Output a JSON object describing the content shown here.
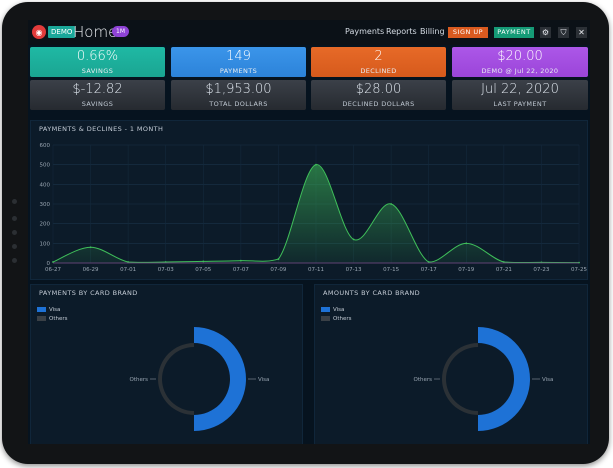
{
  "topbar": {
    "logo_glyph": "◉",
    "demo_badge": "DEMO",
    "title": "Home",
    "title_badge": "1M",
    "nav": [
      "Payments",
      "Reports",
      "Billing"
    ],
    "signup_label": "SIGN UP",
    "payment_label": "PAYMENT",
    "icons": [
      "gear-icon",
      "shield-icon",
      "close-icon"
    ],
    "icon_glyphs": [
      "⚙",
      "⛉",
      "✕"
    ]
  },
  "cards_top": [
    {
      "value": "0.66%",
      "label": "SAVINGS",
      "color": "#1aa592"
    },
    {
      "value": "149",
      "label": "PAYMENTS",
      "color": "#2c83d9"
    },
    {
      "value": "2",
      "label": "DECLINED",
      "color": "#d65a1c"
    },
    {
      "value": "$20.00",
      "label": "DEMO @ Jul 22, 2020",
      "color": "#9b45d9"
    }
  ],
  "cards_bottom": [
    {
      "value": "$-12.82",
      "label": "SAVINGS"
    },
    {
      "value": "$1,953.00",
      "label": "TOTAL DOLLARS"
    },
    {
      "value": "$28.00",
      "label": "DECLINED DOLLARS"
    },
    {
      "value": "Jul 22, 2020",
      "label": "LAST PAYMENT"
    }
  ],
  "line_panel": {
    "title": "PAYMENTS & DECLINES - 1 MONTH"
  },
  "chart_data": [
    {
      "type": "area",
      "title": "PAYMENTS & DECLINES - 1 MONTH",
      "categories": [
        "06-27",
        "06-29",
        "07-01",
        "07-03",
        "07-05",
        "07-07",
        "07-09",
        "07-11",
        "07-13",
        "07-15",
        "07-17",
        "07-19",
        "07-21",
        "07-23",
        "07-25"
      ],
      "yticks": [
        "0",
        "100",
        "200",
        "300",
        "400",
        "500",
        "600"
      ],
      "ylim": [
        0,
        600
      ],
      "grid": true,
      "series": [
        {
          "values": [
            5,
            80,
            5,
            5,
            8,
            12,
            20,
            500,
            120,
            300,
            5,
            100,
            5,
            3,
            2
          ],
          "color": "#3fbf5a"
        }
      ]
    },
    {
      "type": "pie",
      "title": "PAYMENTS BY CARD BRAND",
      "legend": [
        "Visa",
        "Others"
      ],
      "labels": [
        "Others",
        "Visa"
      ],
      "values": [
        50,
        50
      ],
      "colors": [
        "#2b3136",
        "#1e72d6"
      ]
    },
    {
      "type": "pie",
      "title": "AMOUNTS BY CARD BRAND",
      "legend": [
        "Visa",
        "Others"
      ],
      "labels": [
        "Others",
        "Visa"
      ],
      "values": [
        50,
        50
      ],
      "colors": [
        "#2b3136",
        "#1e72d6"
      ]
    }
  ]
}
